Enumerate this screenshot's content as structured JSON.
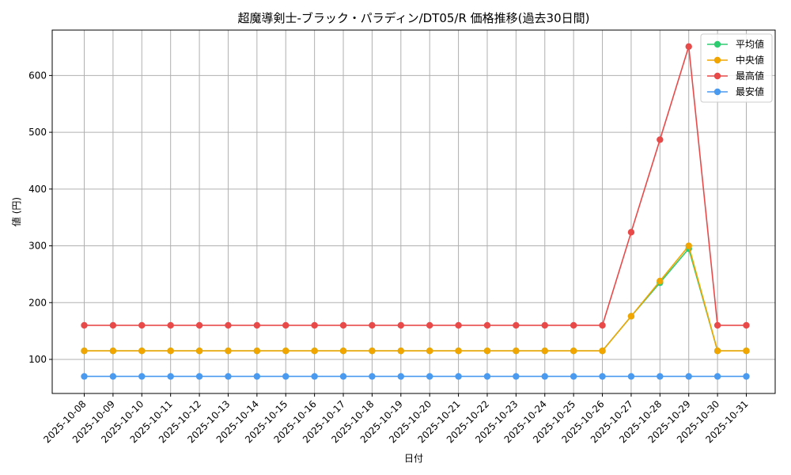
{
  "chart_data": {
    "type": "line",
    "title": "超魔導剣士-ブラック・パラディン/DT05/R 価格推移(過去30日間)",
    "xlabel": "日付",
    "ylabel": "値 (円)",
    "ylim": [
      40,
      680
    ],
    "yticks": [
      100,
      200,
      300,
      400,
      500,
      600
    ],
    "grid": true,
    "legend_position": "top-right",
    "categories": [
      "2025-10-08",
      "2025-10-09",
      "2025-10-10",
      "2025-10-11",
      "2025-10-12",
      "2025-10-13",
      "2025-10-14",
      "2025-10-15",
      "2025-10-16",
      "2025-10-17",
      "2025-10-18",
      "2025-10-19",
      "2025-10-20",
      "2025-10-21",
      "2025-10-22",
      "2025-10-23",
      "2025-10-24",
      "2025-10-25",
      "2025-10-26",
      "2025-10-27",
      "2025-10-28",
      "2025-10-29",
      "2025-10-30",
      "2025-10-31"
    ],
    "series": [
      {
        "name": "平均値",
        "color": "#2ecc71",
        "values": [
          115,
          115,
          115,
          115,
          115,
          115,
          115,
          115,
          115,
          115,
          115,
          115,
          115,
          115,
          115,
          115,
          115,
          115,
          115,
          176,
          235,
          295,
          115,
          115
        ]
      },
      {
        "name": "中央値",
        "color": "#f0a500",
        "values": [
          115,
          115,
          115,
          115,
          115,
          115,
          115,
          115,
          115,
          115,
          115,
          115,
          115,
          115,
          115,
          115,
          115,
          115,
          115,
          176,
          238,
          300,
          115,
          115
        ]
      },
      {
        "name": "最高値",
        "color": "#e84a4a",
        "values": [
          160,
          160,
          160,
          160,
          160,
          160,
          160,
          160,
          160,
          160,
          160,
          160,
          160,
          160,
          160,
          160,
          160,
          160,
          160,
          324,
          487,
          651,
          160,
          160
        ]
      },
      {
        "name": "最安値",
        "color": "#4a9af0",
        "values": [
          70,
          70,
          70,
          70,
          70,
          70,
          70,
          70,
          70,
          70,
          70,
          70,
          70,
          70,
          70,
          70,
          70,
          70,
          70,
          70,
          70,
          70,
          70,
          70
        ]
      }
    ]
  }
}
